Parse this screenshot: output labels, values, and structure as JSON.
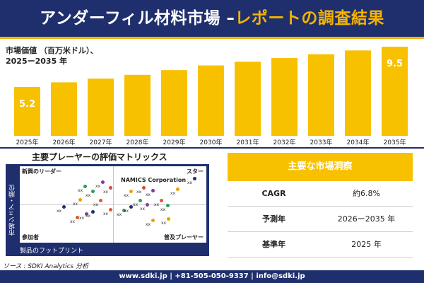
{
  "header": {
    "title_main": "アンダーフィル材料市場 –",
    "title_sub": "レポートの調査結果"
  },
  "chart_label": {
    "line1": "市場価値 （百万米ドル）、",
    "line2": "2025ー2035 年"
  },
  "chart_data": {
    "type": "bar",
    "categories": [
      "2025年",
      "2026年",
      "2027年",
      "2028年",
      "2029年",
      "2030年",
      "2031年",
      "2032年",
      "2033年",
      "2034年",
      "2035年"
    ],
    "values": [
      5.2,
      5.7,
      6.1,
      6.5,
      7.0,
      7.5,
      7.9,
      8.3,
      8.7,
      9.1,
      9.5
    ],
    "data_labels": {
      "first": "5.2",
      "last": "9.5"
    },
    "title": "",
    "xlabel": "",
    "ylabel": "",
    "ylim": [
      0,
      9.5
    ],
    "bar_color": "#f8c100"
  },
  "matrix": {
    "title": "主要プレーヤーの評価マトリックス",
    "y_axis_label": "市場シェア・順位",
    "x_axis_label": "製品のフットプリント",
    "quadrants": {
      "top_left": "新興のリーダー",
      "top_right": "スター",
      "bottom_left": "参加者",
      "bottom_right": "普及プレーヤー"
    },
    "company": "NAMICS Corporation",
    "placeholder_label": "xx"
  },
  "source": "ソース : SDKI Analytics 分析",
  "insights": {
    "header": "主要な市場洞察",
    "rows": [
      {
        "key": "CAGR",
        "value": "約6.8%"
      },
      {
        "key": "予測年",
        "value": "2026ー2035 年"
      },
      {
        "key": "基準年",
        "value": "2025 年"
      }
    ]
  },
  "footer": "www.sdki.jp | +81-505-050-9337 | info@sdki.jp",
  "colors": {
    "navy": "#1f2f6e",
    "accent": "#f8c100"
  }
}
